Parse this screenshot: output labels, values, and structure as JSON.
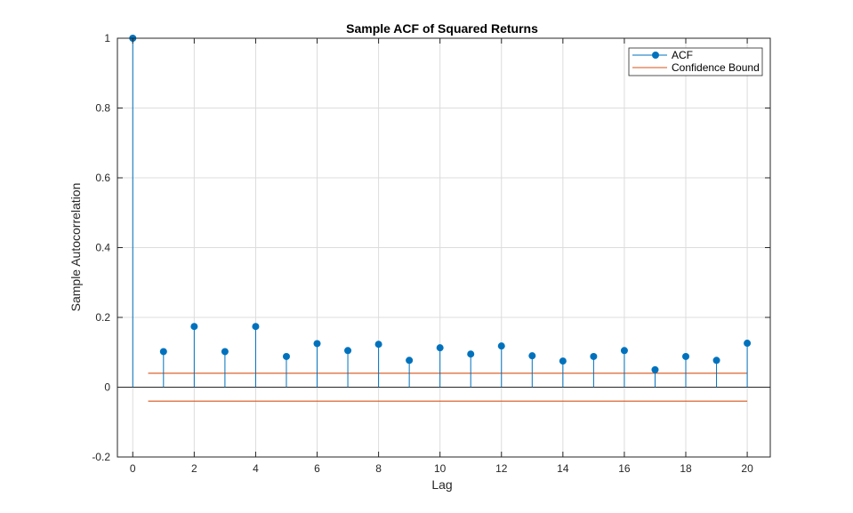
{
  "chart_data": {
    "type": "stem",
    "title": "Sample ACF of Squared Returns",
    "xlabel": "Lag",
    "ylabel": "Sample Autocorrelation",
    "xlim": [
      -0.5,
      20.75
    ],
    "ylim": [
      -0.2,
      1
    ],
    "xticks": [
      0,
      2,
      4,
      6,
      8,
      10,
      12,
      14,
      16,
      18,
      20
    ],
    "yticks": [
      -0.2,
      0,
      0.2,
      0.4,
      0.6,
      0.8,
      1
    ],
    "ytick_labels": [
      "-0.2",
      "0",
      "0.2",
      "0.4",
      "0.6",
      "0.8",
      "1"
    ],
    "grid": true,
    "legend_position": "top-right",
    "series": [
      {
        "name": "ACF",
        "color": "#0072BD",
        "x": [
          0,
          1,
          2,
          3,
          4,
          5,
          6,
          7,
          8,
          9,
          10,
          11,
          12,
          13,
          14,
          15,
          16,
          17,
          18,
          19,
          20
        ],
        "values": [
          1.0,
          0.102,
          0.174,
          0.102,
          0.174,
          0.088,
          0.125,
          0.105,
          0.123,
          0.077,
          0.113,
          0.095,
          0.118,
          0.09,
          0.075,
          0.088,
          0.105,
          0.05,
          0.088,
          0.077,
          0.126
        ]
      },
      {
        "name": "Confidence Bound",
        "color": "#D95319",
        "x_range": [
          0.5,
          20
        ],
        "upper": 0.04,
        "lower": -0.04
      }
    ]
  }
}
